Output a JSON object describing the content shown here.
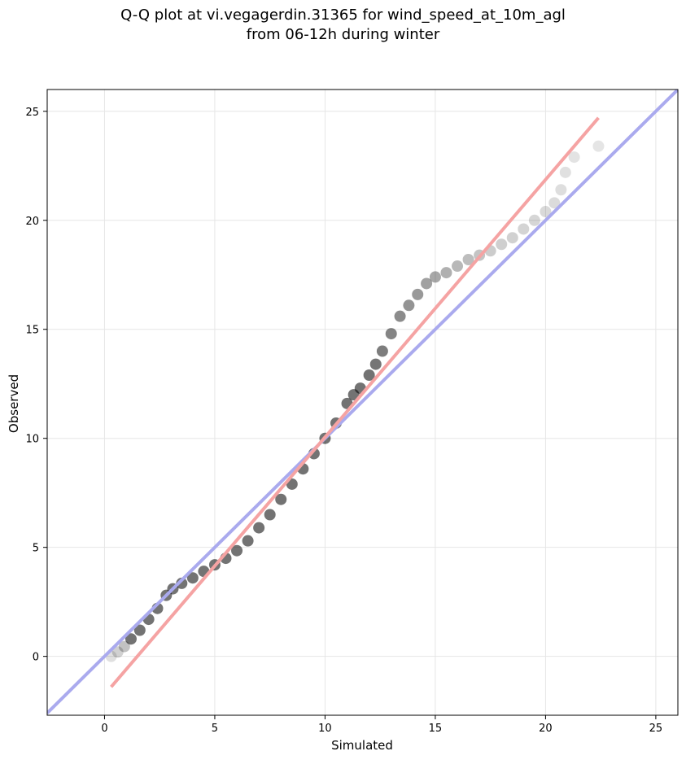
{
  "chart_data": {
    "type": "scatter",
    "title_line1": "Q-Q plot at vi.vegagerdin.31365 for wind_speed_at_10m_agl",
    "title_line2": "from 06-12h during winter",
    "xlabel": "Simulated",
    "ylabel": "Observed",
    "xlim": [
      -2.6,
      26
    ],
    "ylim": [
      -2.7,
      26
    ],
    "xticks": [
      0,
      5,
      10,
      15,
      20,
      25
    ],
    "yticks": [
      0,
      5,
      10,
      15,
      20,
      25
    ],
    "grid": true,
    "colors": {
      "points": "#000000",
      "identity_line": "#aaaaee",
      "fit_line": "#f5a3a3"
    },
    "identity_line": {
      "from": [
        -2.6,
        -2.6
      ],
      "to": [
        26,
        26
      ]
    },
    "fit_line": {
      "from": [
        0.3,
        -1.4
      ],
      "to": [
        22.4,
        24.7
      ]
    },
    "quantiles": {
      "x": [
        0.3,
        0.6,
        0.9,
        1.2,
        1.6,
        2.0,
        2.4,
        2.8,
        3.1,
        3.5,
        4.0,
        4.5,
        5.0,
        5.5,
        6.0,
        6.5,
        7.0,
        7.5,
        8.0,
        8.5,
        9.0,
        9.5,
        10.0,
        10.5,
        11.0,
        11.3,
        11.6,
        12.0,
        12.3,
        12.6,
        13.0,
        13.4,
        13.8,
        14.2,
        14.6,
        15.0,
        15.5,
        16.0,
        16.5,
        17.0,
        17.5,
        18.0,
        18.5,
        19.0,
        19.5,
        20.0,
        20.4,
        20.7,
        20.9,
        21.3,
        22.4
      ],
      "y": [
        0.0,
        0.2,
        0.45,
        0.8,
        1.2,
        1.7,
        2.2,
        2.8,
        3.1,
        3.35,
        3.6,
        3.9,
        4.2,
        4.5,
        4.85,
        5.3,
        5.9,
        6.5,
        7.2,
        7.9,
        8.6,
        9.3,
        10.0,
        10.7,
        11.6,
        12.0,
        12.3,
        12.9,
        13.4,
        14.0,
        14.8,
        15.6,
        16.1,
        16.6,
        17.1,
        17.4,
        17.6,
        17.9,
        18.2,
        18.4,
        18.6,
        18.9,
        19.2,
        19.6,
        20.0,
        20.4,
        20.8,
        21.4,
        22.2,
        22.9,
        23.4
      ]
    }
  }
}
